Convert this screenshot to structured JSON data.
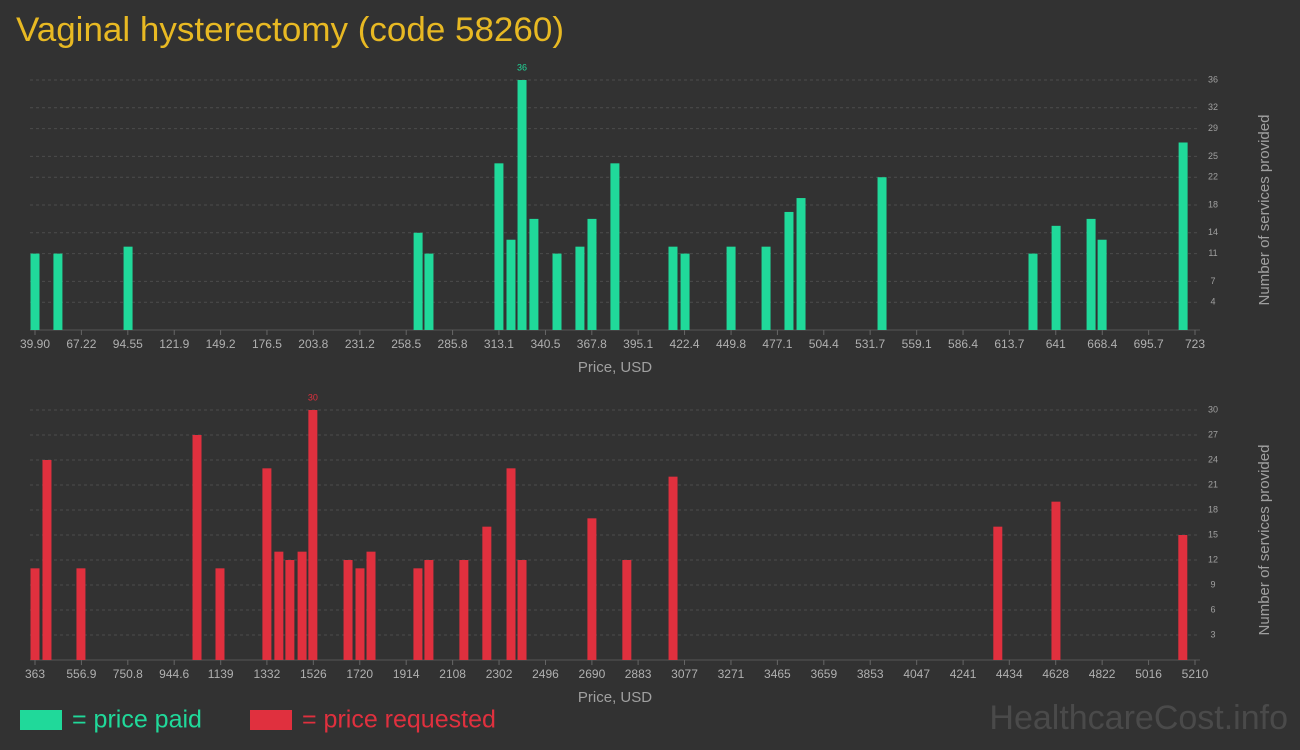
{
  "title": "Vaginal hysterectomy (code 58260)",
  "watermark": "HealthcareCost.info",
  "chart_data": [
    {
      "type": "bar",
      "x_label": "Price, USD",
      "y_label": "Number of services provided",
      "grid": true,
      "xlim": [
        39.9,
        723
      ],
      "ylim": [
        0,
        36
      ],
      "xticks": [
        {
          "value": 39.9,
          "label": "39.90"
        },
        67.22,
        94.55,
        121.9,
        149.2,
        176.5,
        203.8,
        231.2,
        258.5,
        285.8,
        313.1,
        340.5,
        367.8,
        395.1,
        422.4,
        449.8,
        477.1,
        504.4,
        531.7,
        559.1,
        586.4,
        613.7,
        641,
        668.4,
        695.7,
        723
      ],
      "yticks": [
        4,
        7,
        11,
        14,
        18,
        22,
        25,
        29,
        32,
        36
      ],
      "series": [
        {
          "name": "= price paid",
          "color": "#20d99a",
          "x": [
            39.9,
            53.4,
            94.7,
            265.5,
            271.9,
            313.1,
            320.2,
            326.7,
            333.7,
            347.3,
            360.8,
            367.9,
            381.4,
            415.6,
            422.7,
            449.8,
            470.4,
            483.9,
            491,
            538.7,
            627.6,
            641.2,
            661.8,
            668.3,
            716
          ],
          "values": [
            11,
            11,
            12,
            14,
            11,
            24,
            13,
            36,
            16,
            11,
            12,
            16,
            24,
            12,
            11,
            12,
            12,
            17,
            19,
            22,
            11,
            15,
            16,
            13,
            27
          ]
        }
      ]
    },
    {
      "type": "bar",
      "x_label": "Price, USD",
      "y_label": "Number of services provided",
      "grid": true,
      "xlim": [
        363,
        5210
      ],
      "ylim": [
        0,
        30
      ],
      "xticks": [
        363,
        556.9,
        750.8,
        944.6,
        1139,
        1332,
        1526,
        1720,
        1914,
        2108,
        2302,
        2496,
        2690,
        2883,
        3077,
        3271,
        3465,
        3659,
        3853,
        4047,
        4241,
        4434,
        4628,
        4822,
        5016,
        5210
      ],
      "yticks": [
        3,
        6,
        9,
        12,
        15,
        18,
        21,
        24,
        27,
        30
      ],
      "series": [
        {
          "name": "= price requested",
          "color": "#e0303e",
          "x": [
            363,
            413,
            555,
            1040,
            1136,
            1332,
            1382,
            1428,
            1479,
            1524,
            1671,
            1721,
            1767,
            1963,
            2009,
            2155,
            2251,
            2352,
            2398,
            2690,
            2836,
            3029,
            4386,
            4629,
            5159
          ],
          "values": [
            11,
            24,
            11,
            27,
            11,
            23,
            13,
            12,
            13,
            30,
            12,
            11,
            13,
            11,
            12,
            12,
            16,
            23,
            12,
            17,
            12,
            22,
            16,
            19,
            15
          ]
        }
      ]
    }
  ]
}
